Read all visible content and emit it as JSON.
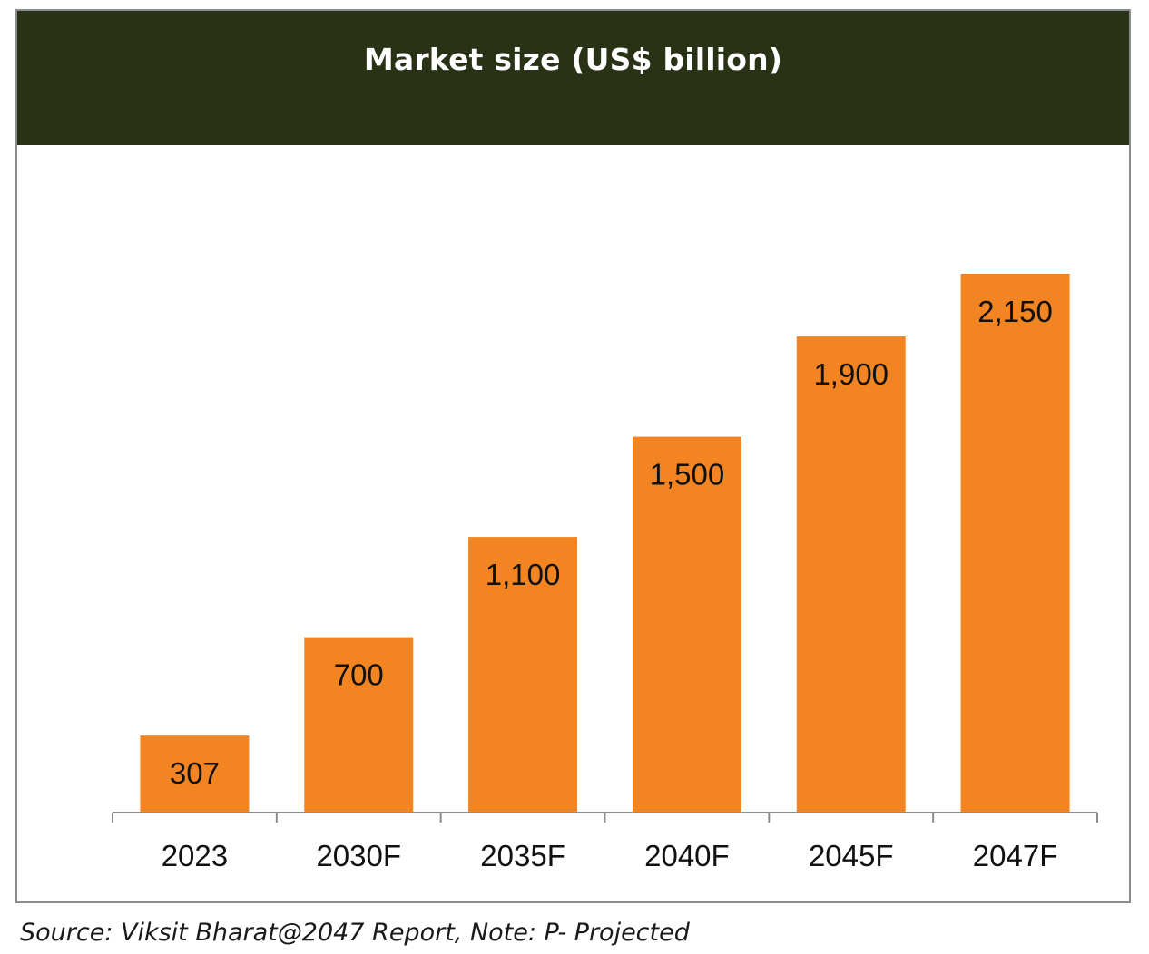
{
  "chart_data": {
    "type": "bar",
    "title": "Market size (US$ billion)",
    "categories": [
      "2023",
      "2030F",
      "2035F",
      "2040F",
      "2045F",
      "2047F"
    ],
    "values": [
      307,
      700,
      1100,
      1500,
      1900,
      2150
    ],
    "value_labels": [
      "307",
      "700",
      "1,100",
      "1,500",
      "1,900",
      "2,150"
    ],
    "xlabel": "",
    "ylabel": "",
    "ylim": [
      0,
      2150
    ],
    "grid": false,
    "legend": "none",
    "colors": {
      "bar": "#f28522",
      "title_background": "#2a3216",
      "title_text": "#ffffff",
      "axis": "#8c8c8c"
    }
  },
  "footer": {
    "source_note": "Source: Viksit Bharat@2047 Report, Note: P- Projected"
  }
}
